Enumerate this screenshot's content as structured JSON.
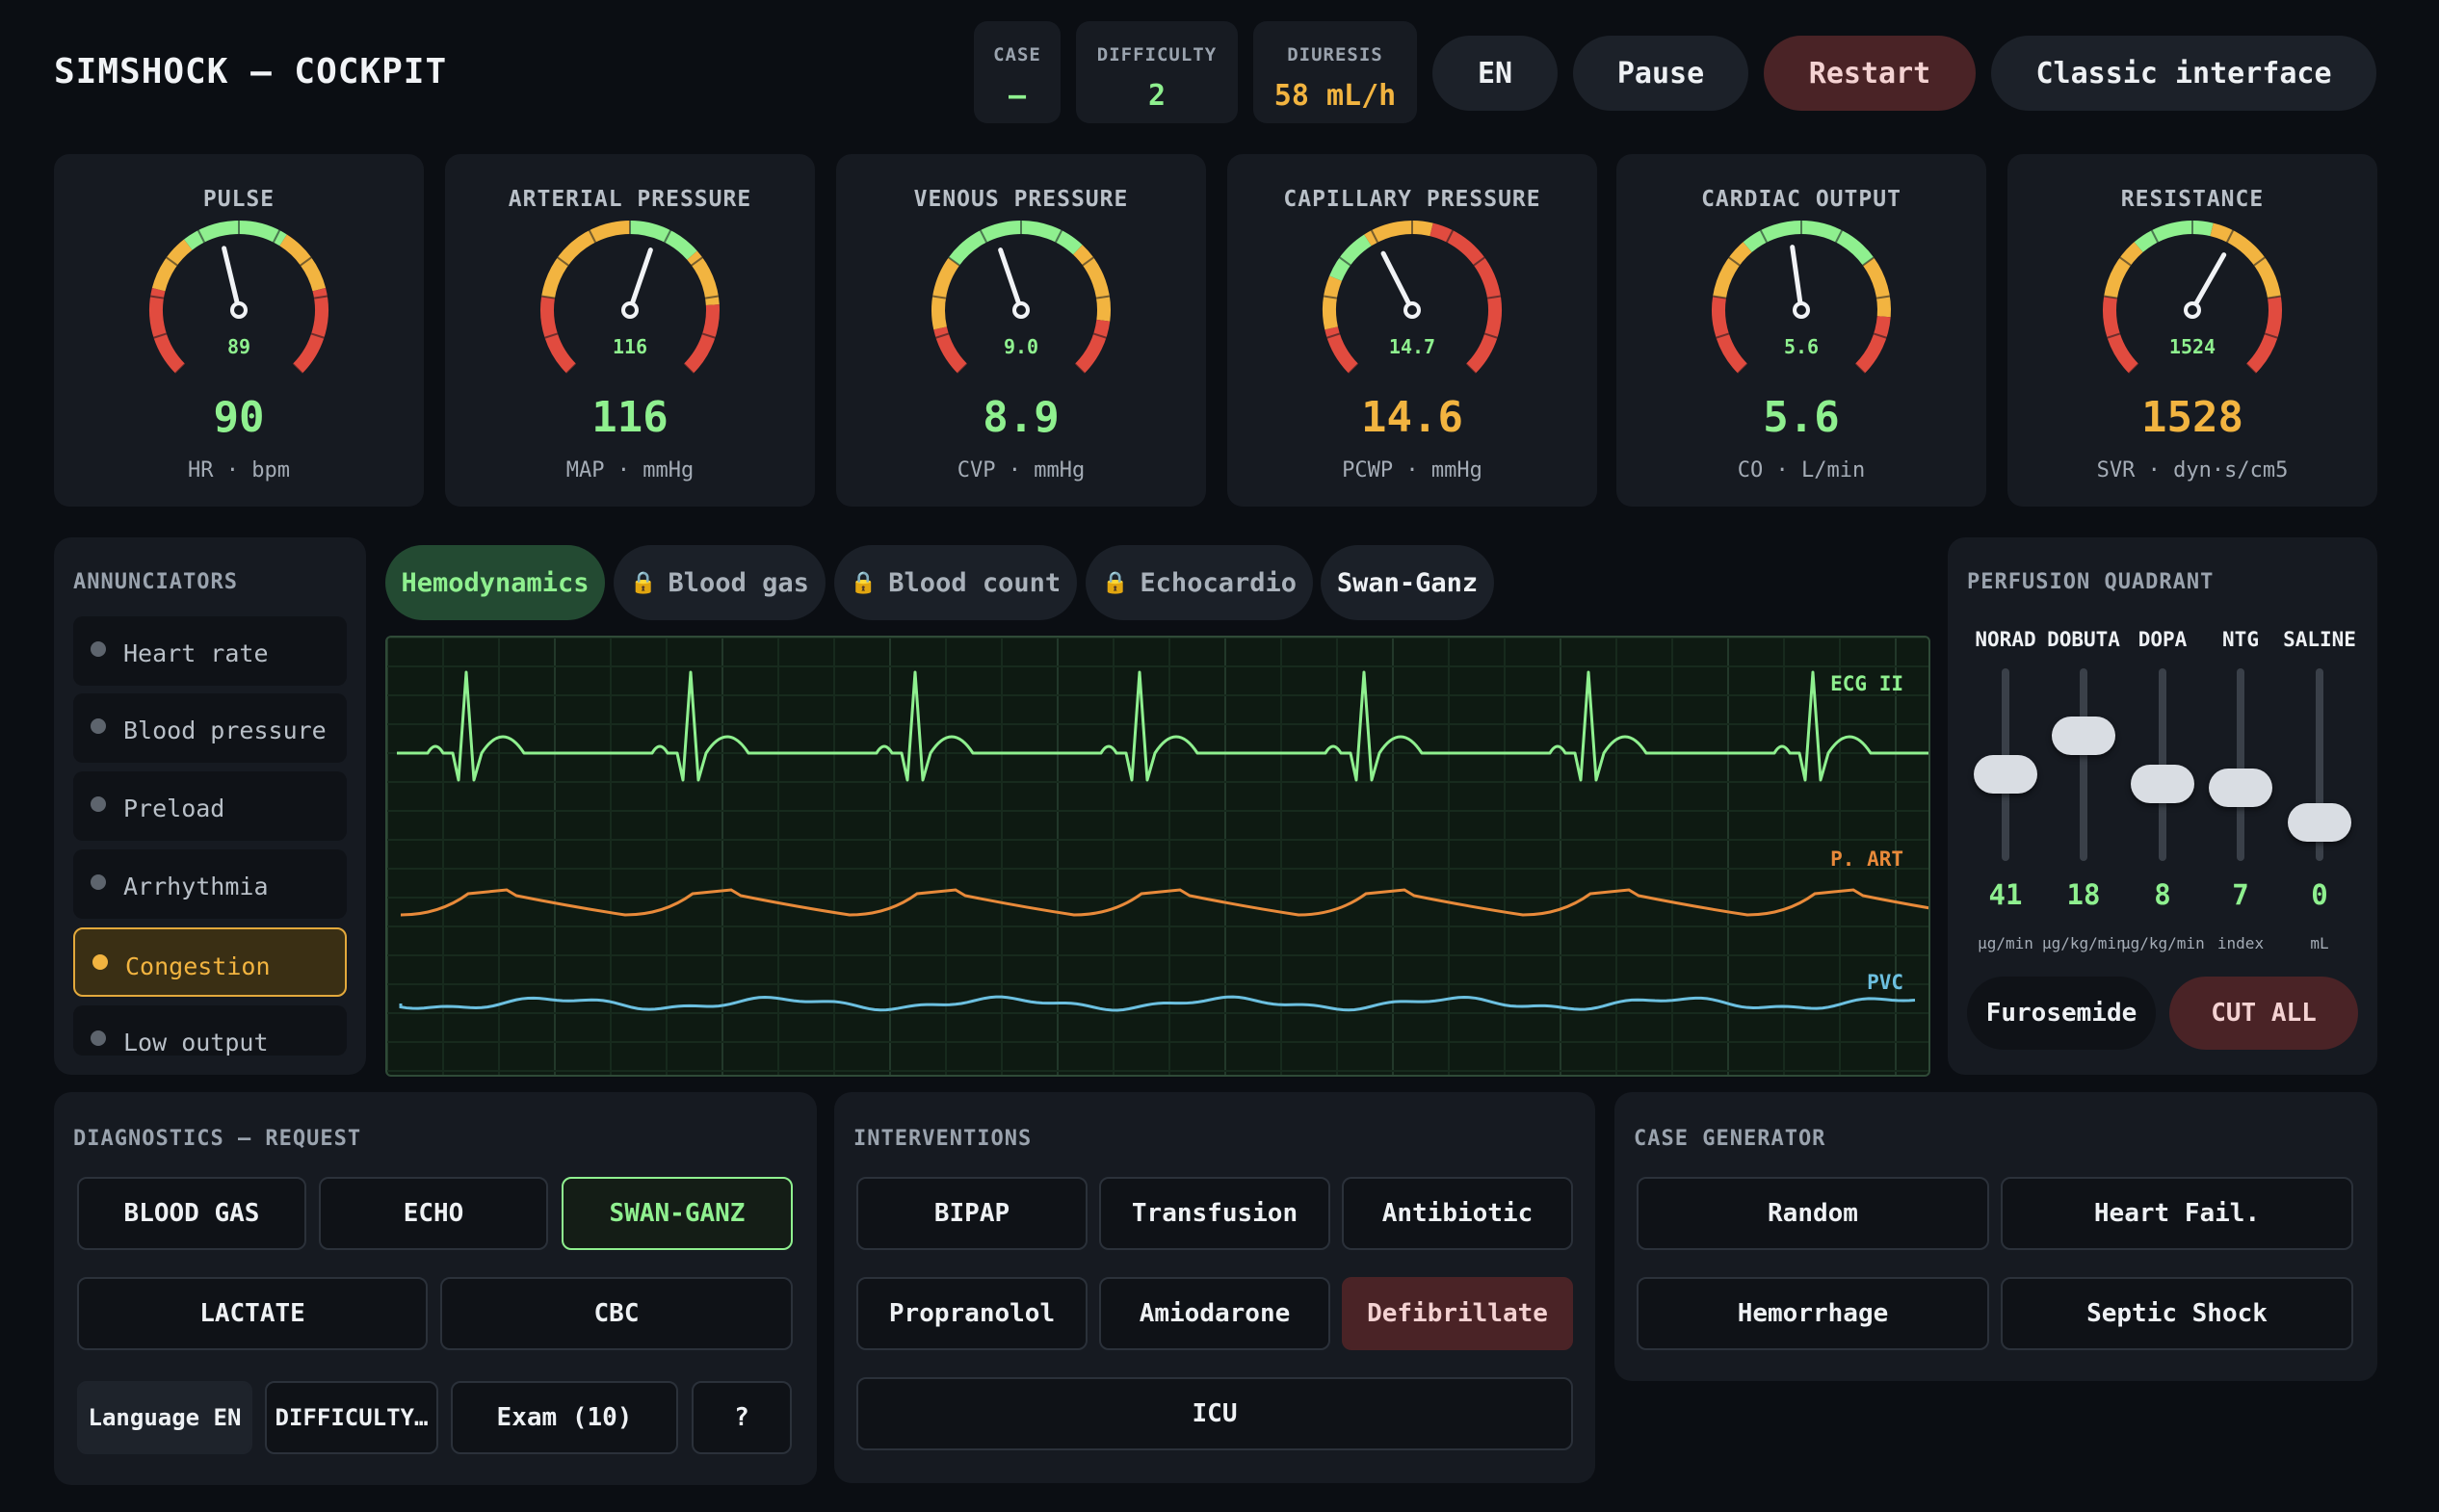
{
  "header": {
    "title": "SIMSHOCK — COCKPIT",
    "case_label": "CASE",
    "case_value": "–",
    "difficulty_label": "DIFFICULTY",
    "difficulty_value": "2",
    "diuresis_label": "DIURESIS",
    "diuresis_value": "58 mL/h",
    "lang_button": "EN",
    "pause_button": "Pause",
    "restart_button": "Restart",
    "classic_button": "Classic interface"
  },
  "gauges": [
    {
      "label": "PULSE",
      "dial": "89",
      "value": "90",
      "unit": "HR · bpm",
      "value_color": "#8ff08f",
      "dial_fraction": 0.45
    },
    {
      "label": "ARTERIAL PRESSURE",
      "dial": "116",
      "value": "116",
      "unit": "MAP · mmHg",
      "value_color": "#8ff08f",
      "dial_fraction": 0.57
    },
    {
      "label": "VENOUS PRESSURE",
      "dial": "9.0",
      "value": "8.9",
      "unit": "CVP · mmHg",
      "value_color": "#8ff08f",
      "dial_fraction": 0.43
    },
    {
      "label": "CAPILLARY PRESSURE",
      "dial": "14.7",
      "value": "14.6",
      "unit": "PCWP · mmHg",
      "value_color": "#f2b440",
      "dial_fraction": 0.4
    },
    {
      "label": "CARDIAC OUTPUT",
      "dial": "5.6",
      "value": "5.6",
      "unit": "CO · L/min",
      "value_color": "#8ff08f",
      "dial_fraction": 0.47
    },
    {
      "label": "RESISTANCE",
      "dial": "1524",
      "value": "1528",
      "unit": "SVR · dyn·s/cm5",
      "value_color": "#f2b440",
      "dial_fraction": 0.61
    }
  ],
  "annunciators": {
    "title": "ANNUNCIATORS",
    "items": [
      {
        "label": "Heart rate",
        "active": false
      },
      {
        "label": "Blood pressure",
        "active": false
      },
      {
        "label": "Preload",
        "active": false
      },
      {
        "label": "Arrhythmia",
        "active": false
      },
      {
        "label": "Congestion",
        "active": true
      },
      {
        "label": "Low output",
        "active": false
      }
    ]
  },
  "tabs": [
    {
      "label": "Hemodynamics",
      "locked": false,
      "active": true
    },
    {
      "label": "Blood gas",
      "locked": true,
      "active": false
    },
    {
      "label": "Blood count",
      "locked": true,
      "active": false
    },
    {
      "label": "Echocardio",
      "locked": true,
      "active": false
    },
    {
      "label": "Swan-Ganz",
      "locked": false,
      "active": false
    }
  ],
  "monitor": {
    "ecg_label": "ECG II",
    "art_label": "P. ART",
    "pvc_label": "PVC",
    "ecg_color": "#8ff08f",
    "art_color": "#e88a3a",
    "pvc_color": "#6cc0e0"
  },
  "perfusion": {
    "title": "PERFUSION QUADRANT",
    "drugs": [
      {
        "name": "NORAD",
        "value": "41",
        "unit": "µg/min",
        "level": 0.35
      },
      {
        "name": "DOBUTA",
        "value": "18",
        "unit": "µg/kg/min",
        "level": 0.55
      },
      {
        "name": "DOPA",
        "value": "8",
        "unit": "µg/kg/min",
        "level": 0.3
      },
      {
        "name": "NTG",
        "value": "7",
        "unit": "index",
        "level": 0.28
      },
      {
        "name": "SALINE",
        "value": "0",
        "unit": "mL",
        "level": 0.1
      }
    ],
    "furosemide_button": "Furosemide",
    "cut_all_button": "CUT ALL"
  },
  "diagnostics": {
    "title": "DIAGNOSTICS — REQUEST",
    "blood_gas": "BLOOD GAS",
    "echo": "ECHO",
    "swan_ganz": "SWAN-GANZ",
    "lactate": "LACTATE",
    "cbc": "CBC",
    "language": "Language EN",
    "difficulty": "DIFFICULTY…",
    "exam": "Exam (10)",
    "help": "?"
  },
  "interventions": {
    "title": "INTERVENTIONS",
    "bipap": "BIPAP",
    "transfusion": "Transfusion",
    "antibiotic": "Antibiotic",
    "propranolol": "Propranolol",
    "amiodarone": "Amiodarone",
    "defibrillate": "Defibrillate",
    "icu": "ICU"
  },
  "case_generator": {
    "title": "CASE GENERATOR",
    "random": "Random",
    "heart_fail": "Heart Fail.",
    "hemorrhage": "Hemorrhage",
    "septic_shock": "Septic Shock"
  }
}
